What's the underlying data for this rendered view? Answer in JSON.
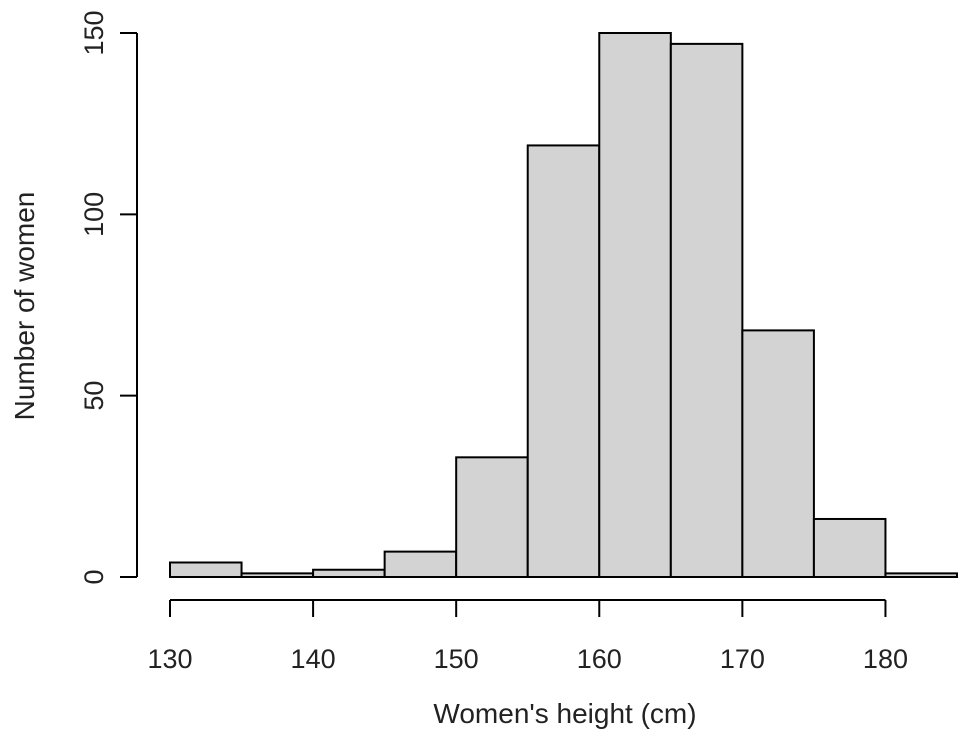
{
  "chart_data": {
    "type": "bar",
    "title": "",
    "xlabel": "Women's height (cm)",
    "ylabel": "Number of women",
    "bins": [
      {
        "x0": 130,
        "x1": 135,
        "count": 4
      },
      {
        "x0": 135,
        "x1": 140,
        "count": 1
      },
      {
        "x0": 140,
        "x1": 145,
        "count": 2
      },
      {
        "x0": 145,
        "x1": 150,
        "count": 7
      },
      {
        "x0": 150,
        "x1": 155,
        "count": 33
      },
      {
        "x0": 155,
        "x1": 160,
        "count": 119
      },
      {
        "x0": 160,
        "x1": 165,
        "count": 150
      },
      {
        "x0": 165,
        "x1": 170,
        "count": 147
      },
      {
        "x0": 170,
        "x1": 175,
        "count": 68
      },
      {
        "x0": 175,
        "x1": 180,
        "count": 16
      },
      {
        "x0": 180,
        "x1": 185,
        "count": 1
      }
    ],
    "xticks": [
      130,
      140,
      150,
      160,
      170,
      180
    ],
    "xtick_labels": [
      "130",
      "140",
      "150",
      "160",
      "170",
      "180"
    ],
    "yticks": [
      0,
      50,
      100,
      150
    ],
    "ytick_labels": [
      "0",
      "50",
      "100",
      "150"
    ],
    "xlim": [
      130,
      185
    ],
    "ylim": [
      0,
      150
    ],
    "grid": false,
    "legend": "none",
    "bar_fill": "#d3d3d3",
    "bar_edge": "#000000"
  }
}
